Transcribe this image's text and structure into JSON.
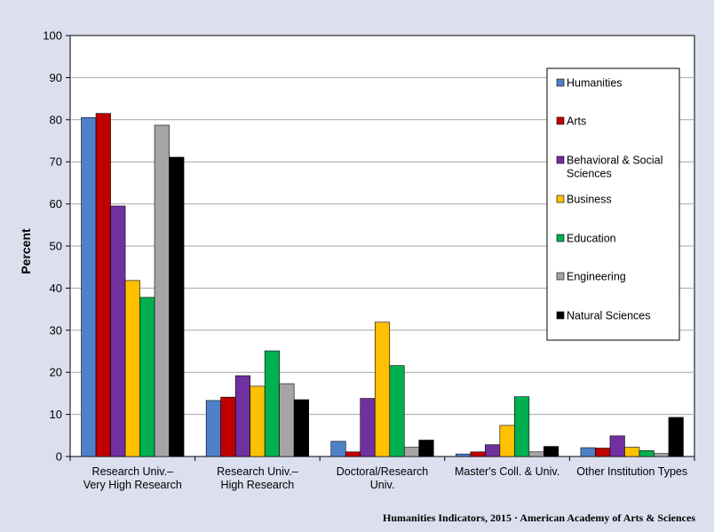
{
  "chart_data": {
    "type": "bar",
    "ylabel": "Percent",
    "xlabel": "",
    "ylim": [
      0,
      100
    ],
    "yticks": [
      0,
      10,
      20,
      30,
      40,
      50,
      60,
      70,
      80,
      90,
      100
    ],
    "grid": true,
    "legend_position": "top-right",
    "categories": [
      [
        "Research Univ.–",
        "Very High Research"
      ],
      [
        "Research Univ.–",
        "High Research"
      ],
      [
        "Doctoral/Research",
        "Univ."
      ],
      [
        "Master's Coll. & Univ."
      ],
      [
        "Other Institution Types"
      ]
    ],
    "series": [
      {
        "name": [
          "Humanities"
        ],
        "color": "#4f81c8",
        "values": [
          80.5,
          13.3,
          3.6,
          0.6,
          2.1
        ]
      },
      {
        "name": [
          "Arts"
        ],
        "color": "#c00000",
        "values": [
          81.5,
          14.1,
          1.1,
          1.1,
          2.0
        ]
      },
      {
        "name": [
          "Behavioral & Social",
          "Sciences"
        ],
        "color": "#7030a0",
        "values": [
          59.5,
          19.2,
          13.8,
          2.8,
          4.9
        ]
      },
      {
        "name": [
          "Business"
        ],
        "color": "#ffc000",
        "values": [
          41.8,
          16.7,
          31.9,
          7.4,
          2.2
        ]
      },
      {
        "name": [
          "Education"
        ],
        "color": "#00b050",
        "values": [
          37.8,
          25.1,
          21.6,
          14.2,
          1.4
        ]
      },
      {
        "name": [
          "Engineering"
        ],
        "color": "#a5a5a5",
        "values": [
          78.7,
          17.3,
          2.2,
          1.1,
          0.7
        ]
      },
      {
        "name": [
          "Natural Sciences"
        ],
        "color": "#000000",
        "values": [
          71.1,
          13.5,
          3.9,
          2.4,
          9.3
        ]
      }
    ],
    "credit": "Humanities Indicators, 2015 · American Academy of Arts & Sciences"
  }
}
